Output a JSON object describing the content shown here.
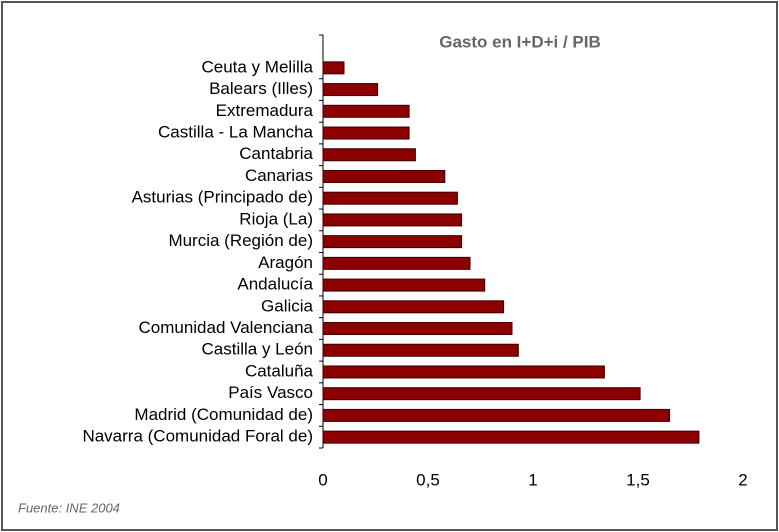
{
  "chart_data": {
    "type": "barh",
    "title": "Gasto en I+D+i / PIB",
    "categories": [
      "Ceuta y Melilla",
      "Balears (Illes)",
      "Extremadura",
      "Castilla - La Mancha",
      "Cantabria",
      "Canarias",
      "Asturias (Principado de)",
      "Rioja (La)",
      "Murcia (Región de)",
      "Aragón",
      "Andalucía",
      "Galicia",
      "Comunidad Valenciana",
      "Castilla y León",
      "Cataluña",
      "País Vasco",
      "Madrid (Comunidad de)",
      "Navarra (Comunidad Foral de)"
    ],
    "values": [
      0.1,
      0.26,
      0.41,
      0.41,
      0.44,
      0.58,
      0.64,
      0.66,
      0.66,
      0.7,
      0.77,
      0.86,
      0.9,
      0.93,
      1.34,
      1.51,
      1.65,
      1.79
    ],
    "color": "#8b0000",
    "xlim": [
      0,
      2
    ],
    "xticks": [
      0,
      {
        "value": 0.5,
        "label": "0,5"
      },
      1,
      {
        "value": 1.5,
        "label": "1,5"
      },
      2
    ],
    "source": "Fuente: INE 2004"
  }
}
